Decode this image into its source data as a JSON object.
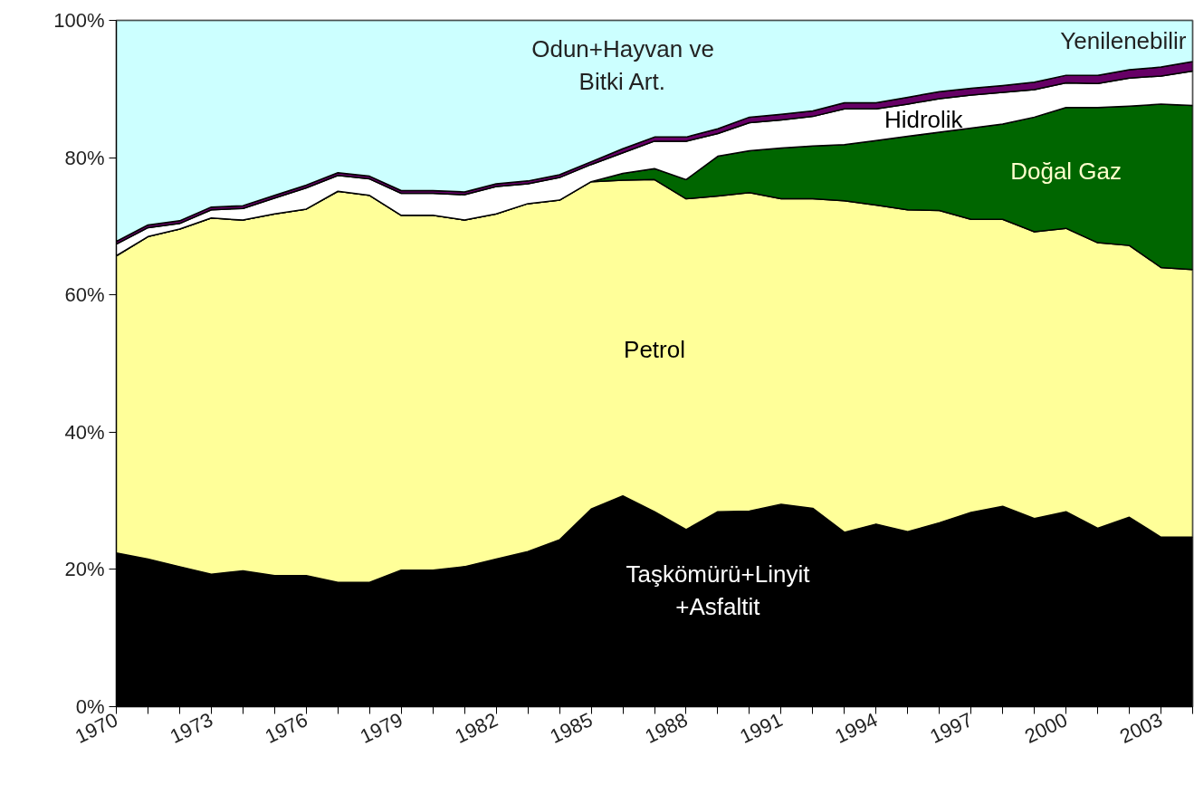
{
  "chart_data": {
    "type": "area",
    "stacked": true,
    "categories": [
      "1970",
      null,
      null,
      "1973",
      null,
      null,
      "1976",
      null,
      null,
      "1979",
      null,
      null,
      "1982",
      null,
      null,
      "1985",
      null,
      null,
      "1988",
      null,
      null,
      "1991",
      null,
      null,
      "1994",
      null,
      null,
      "1997",
      null,
      null,
      "2000",
      null,
      null,
      "2003",
      null
    ],
    "series": [
      {
        "name": "Taşkömürü+Linyit\n+Asfaltit",
        "color": "#000000",
        "values": [
          22.4,
          21.5,
          20.4,
          19.3,
          19.8,
          19.1,
          19.1,
          18.1,
          18.1,
          19.9,
          19.9,
          20.4,
          21.5,
          22.6,
          24.3,
          28.8,
          30.7,
          28.4,
          25.8,
          28.4,
          28.5,
          29.5,
          28.9,
          25.4,
          26.6,
          25.5,
          26.8,
          28.3,
          29.2,
          27.4,
          28.4,
          26.0,
          27.6,
          24.7,
          24.7
        ]
      },
      {
        "name": "Petrol",
        "color": "#ffff99",
        "values": [
          43.3,
          47.0,
          49.2,
          51.9,
          51.1,
          52.7,
          53.4,
          57.0,
          56.4,
          51.7,
          51.7,
          50.5,
          50.3,
          50.7,
          49.5,
          47.7,
          46.0,
          48.4,
          48.2,
          46.0,
          46.4,
          44.5,
          45.1,
          48.3,
          46.5,
          46.9,
          45.5,
          42.7,
          41.8,
          41.8,
          41.3,
          41.6,
          39.6,
          39.3,
          39.0
        ]
      },
      {
        "name": "Doğal Gaz",
        "color": "#006600",
        "values": [
          0,
          0,
          0,
          0,
          0,
          0,
          0,
          0,
          0,
          0,
          0,
          0,
          0,
          0,
          0,
          0,
          1.0,
          1.6,
          2.8,
          5.8,
          6.1,
          7.4,
          7.7,
          8.2,
          9.4,
          10.7,
          11.4,
          13.3,
          13.9,
          16.7,
          17.6,
          19.7,
          20.3,
          23.8,
          23.9
        ]
      },
      {
        "name": "Hidrolik",
        "color": "#ffffff",
        "values": [
          1.7,
          1.3,
          0.8,
          1.2,
          1.7,
          2.3,
          3.1,
          2.3,
          2.4,
          3.2,
          3.2,
          3.7,
          4.0,
          2.9,
          3.3,
          2.5,
          3.0,
          4.0,
          5.6,
          3.3,
          4.1,
          4.1,
          4.3,
          5.2,
          4.6,
          4.7,
          4.9,
          4.8,
          4.6,
          4.0,
          3.6,
          3.5,
          4.1,
          4.1,
          5.0
        ]
      },
      {
        "name": "Yenilenebilir",
        "color": "#660066",
        "values": [
          0.4,
          0.4,
          0.4,
          0.4,
          0.4,
          0.4,
          0.4,
          0.4,
          0.4,
          0.4,
          0.4,
          0.4,
          0.4,
          0.4,
          0.4,
          0.4,
          0.6,
          0.6,
          0.6,
          0.7,
          0.8,
          0.8,
          0.8,
          0.9,
          0.9,
          1.0,
          1.0,
          1.0,
          1.0,
          1.1,
          1.1,
          1.2,
          1.2,
          1.3,
          1.4
        ]
      },
      {
        "name": "Odun+Hayvan ve\nBitki Art.",
        "color": "#ccffff",
        "values": [
          32.2,
          29.8,
          29.2,
          27.2,
          27.0,
          25.5,
          24.0,
          22.2,
          22.7,
          24.8,
          24.8,
          25.0,
          23.8,
          23.4,
          22.5,
          20.6,
          18.7,
          17.0,
          17.0,
          15.8,
          14.1,
          13.7,
          13.2,
          12.0,
          12.0,
          11.2,
          10.4,
          9.9,
          9.5,
          9.0,
          8.0,
          8.0,
          7.2,
          6.8,
          6.0
        ]
      }
    ],
    "ylim": [
      0,
      100
    ],
    "yticks": [
      {
        "value": 0,
        "label": "0%"
      },
      {
        "value": 20,
        "label": "20%"
      },
      {
        "value": 40,
        "label": "40%"
      },
      {
        "value": 60,
        "label": "60%"
      },
      {
        "value": 80,
        "label": "80%"
      },
      {
        "value": 100,
        "label": "100%"
      }
    ],
    "grid": false
  }
}
